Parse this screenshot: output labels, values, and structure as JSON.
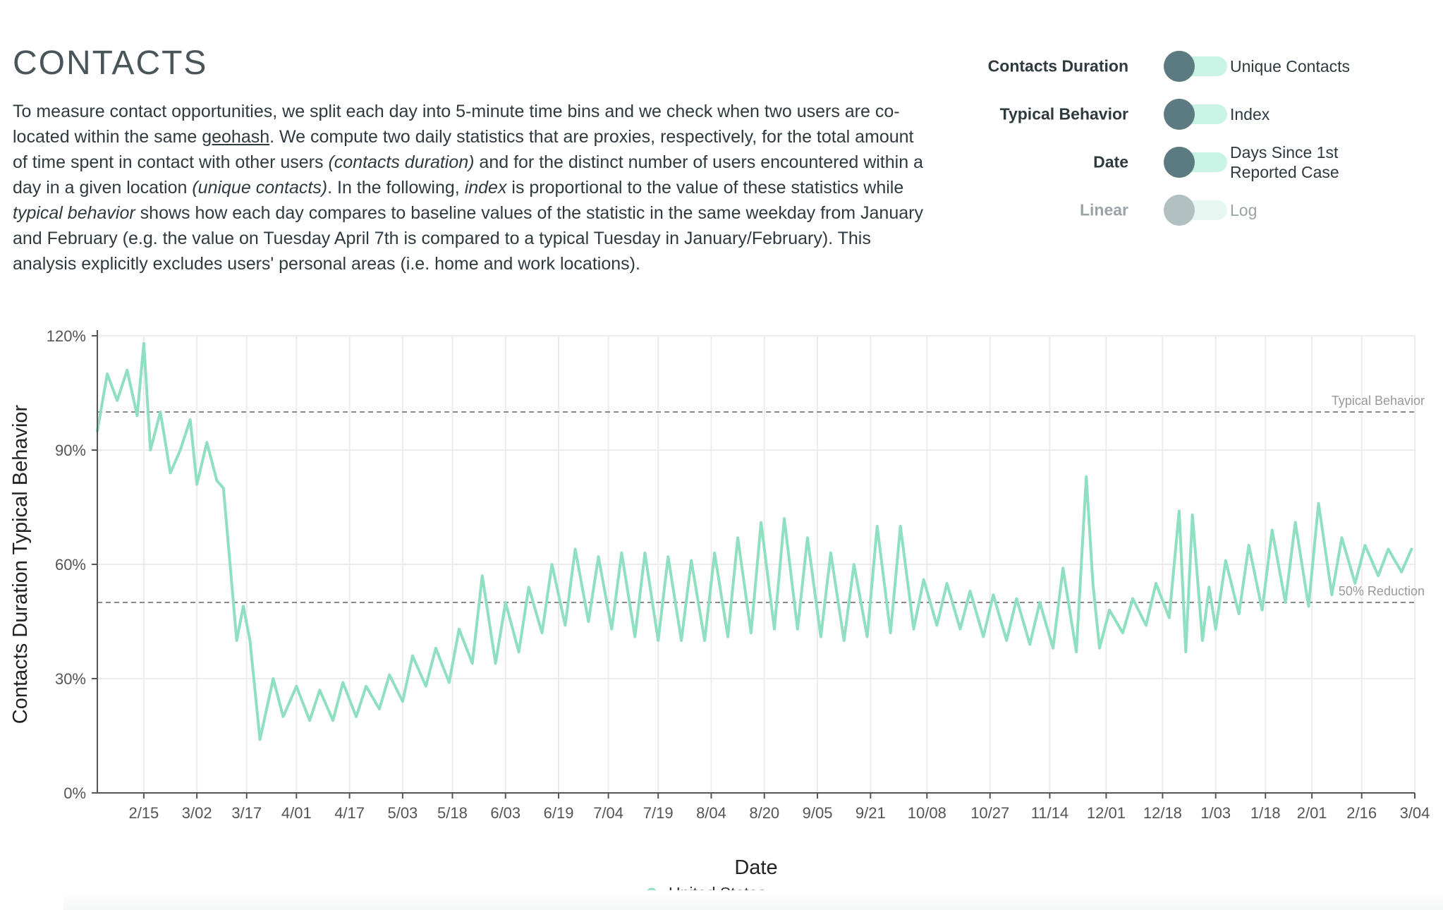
{
  "header": {
    "title": "CONTACTS",
    "desc": {
      "p1": "To measure contact opportunities, we split each day into 5-minute time bins and we check when two users are co-located within the same ",
      "link": "geohash",
      "p2": ". We compute two daily statistics that are proxies, respectively, for the total amount of time spent in contact with other users ",
      "em1": "(contacts duration)",
      "p3": " and for the distinct number of users encountered within a day in a given location ",
      "em2": "(unique contacts)",
      "p4": ". In the following, ",
      "em3": "index",
      "p5": " is proportional to the value of these statistics while ",
      "em4": "typical behavior",
      "p6": " shows how each day compares to baseline values of the statistic in the same weekday from January and February (e.g. the value on Tuesday April 7th is compared to a typical Tuesday in January/February). This analysis explicitly excludes users' personal areas (i.e. home and work locations)."
    }
  },
  "toggles": [
    {
      "left": "Contacts Duration",
      "right": "Unique Contacts",
      "enabled": true
    },
    {
      "left": "Typical Behavior",
      "right": "Index",
      "enabled": true
    },
    {
      "left": "Date",
      "right": "Days Since 1st Reported Case",
      "enabled": true
    },
    {
      "left": "Linear",
      "right": "Log",
      "enabled": false
    }
  ],
  "colors": {
    "line": "#8ee0c1",
    "reference": "#8a8a8a",
    "grid": "#ececec",
    "axis": "#555555",
    "toggle_knob": "#5b7a82",
    "toggle_track": "#c9f4e5"
  },
  "chart_data": {
    "type": "line",
    "xlabel": "Date",
    "ylabel": "Contacts Duration Typical Behavior",
    "x_start": "2020-02-01",
    "x_end": "2021-03-04",
    "ylim": [
      0,
      1.2
    ],
    "yticks": [
      0,
      0.3,
      0.6,
      0.9,
      1.2
    ],
    "ytick_labels": [
      "0%",
      "30%",
      "60%",
      "90%",
      "120%"
    ],
    "xticks": [
      "2020-02-15",
      "2020-03-02",
      "2020-03-17",
      "2020-04-01",
      "2020-04-17",
      "2020-05-03",
      "2020-05-18",
      "2020-06-03",
      "2020-06-19",
      "2020-07-04",
      "2020-07-19",
      "2020-08-04",
      "2020-08-20",
      "2020-09-05",
      "2020-09-21",
      "2020-10-08",
      "2020-10-27",
      "2020-11-14",
      "2020-12-01",
      "2020-12-18",
      "2021-01-03",
      "2021-01-18",
      "2021-02-01",
      "2021-02-16",
      "2021-03-04"
    ],
    "xtick_labels": [
      "2/15",
      "3/02",
      "3/17",
      "4/01",
      "4/17",
      "5/03",
      "5/18",
      "6/03",
      "6/19",
      "7/04",
      "7/19",
      "8/04",
      "8/20",
      "9/05",
      "9/21",
      "10/08",
      "10/27",
      "11/14",
      "12/01",
      "12/18",
      "1/03",
      "1/18",
      "2/01",
      "2/16",
      "3/04"
    ],
    "reference_lines": [
      {
        "y": 1.0,
        "label": "Typical Behavior"
      },
      {
        "y": 0.5,
        "label": "50% Reduction"
      }
    ],
    "grid": true,
    "legend_position": "bottom-center",
    "series": [
      {
        "name": "United States",
        "x": [
          "2020-02-01",
          "2020-02-04",
          "2020-02-07",
          "2020-02-10",
          "2020-02-13",
          "2020-02-15",
          "2020-02-17",
          "2020-02-20",
          "2020-02-23",
          "2020-02-26",
          "2020-02-29",
          "2020-03-02",
          "2020-03-05",
          "2020-03-08",
          "2020-03-10",
          "2020-03-12",
          "2020-03-14",
          "2020-03-16",
          "2020-03-18",
          "2020-03-21",
          "2020-03-25",
          "2020-03-28",
          "2020-04-01",
          "2020-04-05",
          "2020-04-08",
          "2020-04-12",
          "2020-04-15",
          "2020-04-19",
          "2020-04-22",
          "2020-04-26",
          "2020-04-29",
          "2020-05-03",
          "2020-05-06",
          "2020-05-10",
          "2020-05-13",
          "2020-05-17",
          "2020-05-20",
          "2020-05-24",
          "2020-05-27",
          "2020-05-31",
          "2020-06-03",
          "2020-06-07",
          "2020-06-10",
          "2020-06-14",
          "2020-06-17",
          "2020-06-21",
          "2020-06-24",
          "2020-06-28",
          "2020-07-01",
          "2020-07-05",
          "2020-07-08",
          "2020-07-12",
          "2020-07-15",
          "2020-07-19",
          "2020-07-22",
          "2020-07-26",
          "2020-07-29",
          "2020-08-02",
          "2020-08-05",
          "2020-08-09",
          "2020-08-12",
          "2020-08-16",
          "2020-08-19",
          "2020-08-23",
          "2020-08-26",
          "2020-08-30",
          "2020-09-02",
          "2020-09-06",
          "2020-09-09",
          "2020-09-13",
          "2020-09-16",
          "2020-09-20",
          "2020-09-23",
          "2020-09-27",
          "2020-09-30",
          "2020-10-04",
          "2020-10-07",
          "2020-10-11",
          "2020-10-14",
          "2020-10-18",
          "2020-10-21",
          "2020-10-25",
          "2020-10-28",
          "2020-11-01",
          "2020-11-04",
          "2020-11-08",
          "2020-11-11",
          "2020-11-15",
          "2020-11-18",
          "2020-11-22",
          "2020-11-25",
          "2020-11-27",
          "2020-11-29",
          "2020-12-02",
          "2020-12-06",
          "2020-12-09",
          "2020-12-13",
          "2020-12-16",
          "2020-12-20",
          "2020-12-23",
          "2020-12-25",
          "2020-12-27",
          "2020-12-30",
          "2021-01-01",
          "2021-01-03",
          "2021-01-06",
          "2021-01-10",
          "2021-01-13",
          "2021-01-17",
          "2021-01-20",
          "2021-01-24",
          "2021-01-27",
          "2021-01-31",
          "2021-02-03",
          "2021-02-07",
          "2021-02-10",
          "2021-02-14",
          "2021-02-17",
          "2021-02-21",
          "2021-02-24",
          "2021-02-28",
          "2021-03-03"
        ],
        "y": [
          0.95,
          1.1,
          1.03,
          1.11,
          0.99,
          1.18,
          0.9,
          1.0,
          0.84,
          0.9,
          0.98,
          0.81,
          0.92,
          0.82,
          0.8,
          0.6,
          0.4,
          0.49,
          0.4,
          0.14,
          0.3,
          0.2,
          0.28,
          0.19,
          0.27,
          0.19,
          0.29,
          0.2,
          0.28,
          0.22,
          0.31,
          0.24,
          0.36,
          0.28,
          0.38,
          0.29,
          0.43,
          0.34,
          0.57,
          0.34,
          0.5,
          0.37,
          0.54,
          0.42,
          0.6,
          0.44,
          0.64,
          0.45,
          0.62,
          0.43,
          0.63,
          0.41,
          0.63,
          0.4,
          0.62,
          0.4,
          0.61,
          0.4,
          0.63,
          0.41,
          0.67,
          0.42,
          0.71,
          0.43,
          0.72,
          0.43,
          0.67,
          0.41,
          0.63,
          0.4,
          0.6,
          0.41,
          0.7,
          0.42,
          0.7,
          0.43,
          0.56,
          0.44,
          0.55,
          0.43,
          0.53,
          0.41,
          0.52,
          0.4,
          0.51,
          0.39,
          0.5,
          0.38,
          0.59,
          0.37,
          0.83,
          0.55,
          0.38,
          0.48,
          0.42,
          0.51,
          0.44,
          0.55,
          0.46,
          0.74,
          0.37,
          0.73,
          0.4,
          0.54,
          0.43,
          0.61,
          0.47,
          0.65,
          0.48,
          0.69,
          0.5,
          0.71,
          0.49,
          0.76,
          0.52,
          0.67,
          0.55,
          0.65,
          0.57,
          0.64,
          0.58,
          0.64
        ]
      }
    ]
  }
}
